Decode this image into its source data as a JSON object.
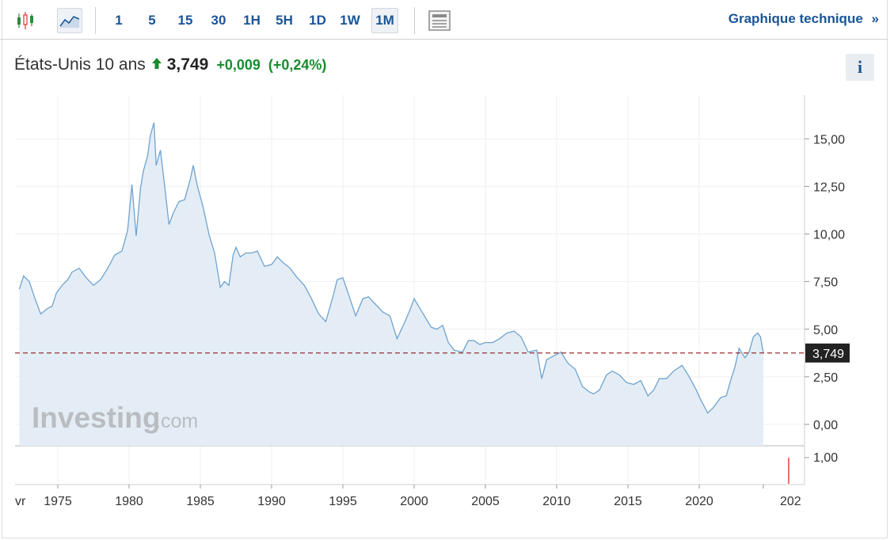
{
  "toolbar": {
    "chart_types": [
      {
        "icon": "candlestick-icon",
        "active": false
      },
      {
        "icon": "area-chart-icon",
        "active": true
      }
    ],
    "periods": [
      "1",
      "5",
      "15",
      "30",
      "1H",
      "5H",
      "1D",
      "1W",
      "1M"
    ],
    "active_period": "1M",
    "layout_icon": "news-layout-icon",
    "tech_link": "Graphique technique",
    "tech_link_arrow": "»"
  },
  "quote": {
    "name": "États-Unis 10 ans",
    "direction_icon": "up-arrow-icon",
    "price": "3,749",
    "change": "+0,009",
    "change_pct": "(+0,24%)",
    "info_label": "i"
  },
  "watermark": {
    "main": "Investing",
    "suffix": ".com"
  },
  "colors": {
    "link": "#1a5596",
    "positive": "#1a8c2e",
    "line": "#6fa3d0",
    "area": "#e4edf5",
    "current_price_line": "#8b1a1a",
    "price_label_bg": "#222222",
    "volume_bar": "#e0413a"
  },
  "chart_data": {
    "type": "area",
    "x_start_label": "vr",
    "x_tick_labels": [
      "1975",
      "1980",
      "1985",
      "1990",
      "1995",
      "2000",
      "2005",
      "2010",
      "2015",
      "2020",
      "202"
    ],
    "y_tick_labels": [
      "15,00",
      "12,50",
      "10,00",
      "7,50",
      "5,00",
      "2,50",
      "0,00"
    ],
    "ylim": [
      0,
      16
    ],
    "grid": true,
    "current_value": 3.749,
    "current_value_label": "3,749",
    "series": [
      {
        "x": [
          1972.3,
          1972.6,
          1973.0,
          1973.4,
          1973.8,
          1974.3,
          1974.6,
          1974.9,
          1975.3,
          1975.7,
          1976.0,
          1976.5,
          1977.0,
          1977.5,
          1978.0,
          1978.5,
          1979.0,
          1979.5,
          1979.9,
          1980.2,
          1980.5,
          1980.8,
          1981.0,
          1981.3,
          1981.5,
          1981.75,
          1981.9,
          1982.2,
          1982.5,
          1982.8,
          1983.1,
          1983.5,
          1983.9,
          1984.3,
          1984.5,
          1984.8,
          1985.2,
          1985.6,
          1986.0,
          1986.4,
          1986.7,
          1987.0,
          1987.3,
          1987.5,
          1987.8,
          1988.2,
          1988.6,
          1989.0,
          1989.5,
          1990.0,
          1990.4,
          1990.8,
          1991.3,
          1991.8,
          1992.3,
          1992.8,
          1993.3,
          1993.8,
          1994.3,
          1994.6,
          1995.0,
          1995.5,
          1995.9,
          1996.4,
          1996.8,
          1997.3,
          1997.8,
          1998.3,
          1998.8,
          1999.3,
          1999.7,
          2000.0,
          2000.4,
          2000.8,
          2001.2,
          2001.6,
          2002.0,
          2002.4,
          2002.8,
          2003.4,
          2003.8,
          2004.2,
          2004.6,
          2005.0,
          2005.5,
          2006.0,
          2006.5,
          2007.0,
          2007.5,
          2008.0,
          2008.6,
          2008.95,
          2009.3,
          2009.8,
          2010.3,
          2010.8,
          2011.3,
          2011.8,
          2012.3,
          2012.6,
          2013.0,
          2013.5,
          2013.9,
          2014.4,
          2014.9,
          2015.4,
          2015.9,
          2016.4,
          2016.8,
          2017.2,
          2017.7,
          2018.2,
          2018.8,
          2019.3,
          2019.8,
          2020.1,
          2020.6,
          2021.0,
          2021.5,
          2021.9,
          2022.2,
          2022.5,
          2022.8,
          2023.2,
          2023.5,
          2023.8,
          2024.1,
          2024.3,
          2024.5
        ],
        "values": [
          7.1,
          7.8,
          7.5,
          6.6,
          5.8,
          6.1,
          6.2,
          6.9,
          7.3,
          7.6,
          8.0,
          8.2,
          7.7,
          7.3,
          7.6,
          8.2,
          8.9,
          9.1,
          10.2,
          12.6,
          9.9,
          12.4,
          13.3,
          14.1,
          15.2,
          15.85,
          13.6,
          14.4,
          12.5,
          10.5,
          11.1,
          11.7,
          11.8,
          12.9,
          13.6,
          12.5,
          11.4,
          10.0,
          9.0,
          7.2,
          7.5,
          7.3,
          8.9,
          9.3,
          8.8,
          9.0,
          9.0,
          9.1,
          8.3,
          8.4,
          8.8,
          8.5,
          8.2,
          7.7,
          7.3,
          6.6,
          5.8,
          5.4,
          6.7,
          7.6,
          7.7,
          6.6,
          5.7,
          6.6,
          6.7,
          6.3,
          5.9,
          5.7,
          4.5,
          5.3,
          6.0,
          6.6,
          6.1,
          5.6,
          5.1,
          5.0,
          5.2,
          4.3,
          3.9,
          3.8,
          4.4,
          4.4,
          4.2,
          4.3,
          4.3,
          4.5,
          4.8,
          4.9,
          4.6,
          3.8,
          3.9,
          2.4,
          3.4,
          3.6,
          3.8,
          3.2,
          2.9,
          2.0,
          1.7,
          1.6,
          1.8,
          2.6,
          2.8,
          2.6,
          2.2,
          2.1,
          2.3,
          1.5,
          1.8,
          2.4,
          2.4,
          2.8,
          3.1,
          2.5,
          1.8,
          1.3,
          0.6,
          0.9,
          1.4,
          1.5,
          2.3,
          3.0,
          4.0,
          3.5,
          3.8,
          4.6,
          4.8,
          4.6,
          3.75
        ]
      }
    ]
  }
}
